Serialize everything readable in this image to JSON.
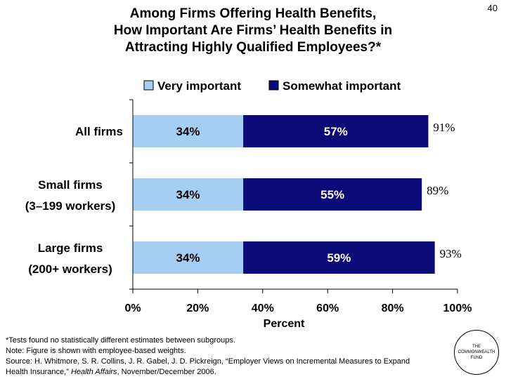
{
  "slide_number": "40",
  "title_lines": [
    "Among Firms Offering Health Benefits,",
    "How Important Are Firms’ Health Benefits in",
    "Attracting Highly Qualified Employees?*"
  ],
  "footnotes": {
    "tests": "*Tests found no statistically different estimates between subgroups.",
    "note": "Note: Figure is shown with employee-based weights.",
    "source_line1": "Source: H. Whitmore, S. R. Collins, J. R. Gabel, J. D. Pickreign, “Employer Views on Incremental Measures to Expand",
    "source_line2_pre": "Health Insurance,” ",
    "source_line2_italic": "Health Affairs",
    "source_line2_post": ", November/December 2006."
  },
  "logo": {
    "line1": "THE",
    "line2": "COMMONWEALTH",
    "line3": "FUND"
  },
  "colors": {
    "very_important": "#a6cdf2",
    "somewhat_important": "#0a0a78",
    "axis": "#000000"
  },
  "chart_data": {
    "type": "bar",
    "orientation": "horizontal",
    "stacked": true,
    "xlabel": "Percent",
    "xlim": [
      0,
      100
    ],
    "xticks": [
      "0%",
      "20%",
      "40%",
      "60%",
      "80%",
      "100%"
    ],
    "legend_position": "top",
    "categories": [
      [
        "All firms"
      ],
      [
        "Small firms",
        "(3–199 workers)"
      ],
      [
        "Large firms",
        "(200+ workers)"
      ]
    ],
    "series": [
      {
        "name": "Very important",
        "values": [
          34,
          34,
          34
        ],
        "labels": [
          "34%",
          "34%",
          "34%"
        ]
      },
      {
        "name": "Somewhat important",
        "values": [
          57,
          55,
          59
        ],
        "labels": [
          "57%",
          "55%",
          "59%"
        ]
      }
    ],
    "totals": {
      "values": [
        91,
        89,
        93
      ],
      "labels": [
        "91%",
        "89%",
        "93%"
      ]
    }
  }
}
